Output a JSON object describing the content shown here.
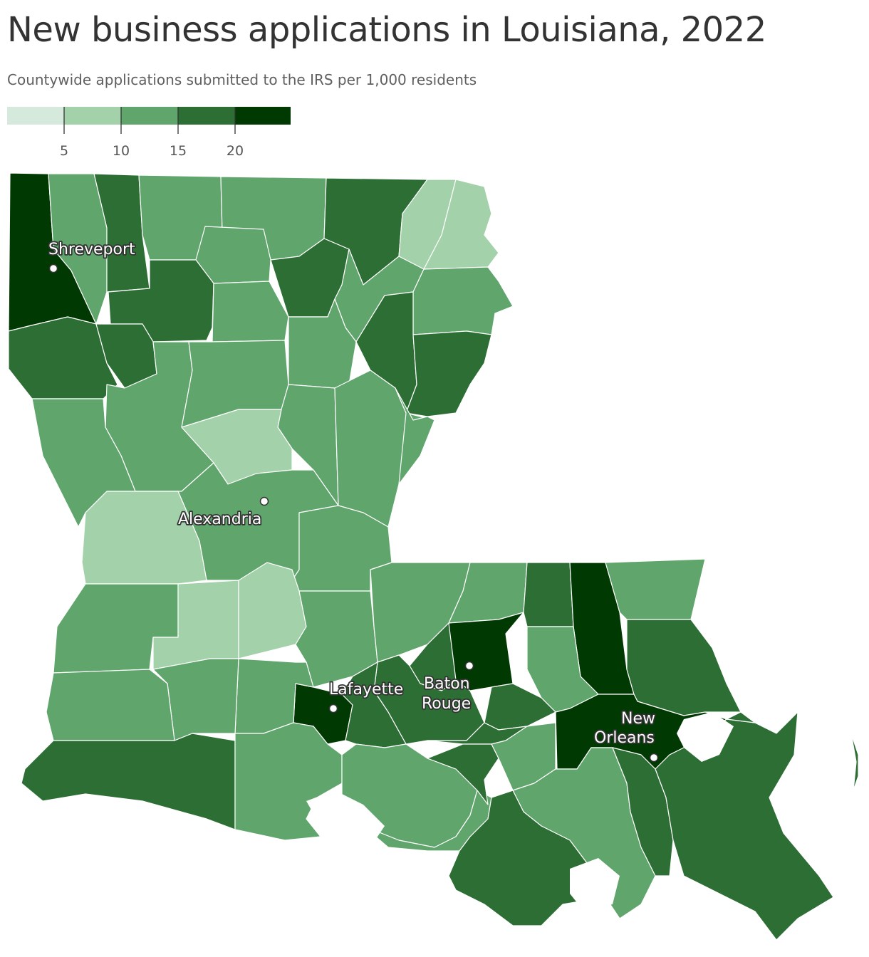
{
  "title": "New business applications in Louisiana, 2022",
  "subtitle": "Countywide applications submitted to the IRS per 1,000 residents",
  "legend": {
    "ticks": [
      "5",
      "10",
      "15",
      "20"
    ],
    "bins": [
      {
        "range": "under 5",
        "color": "#d6e9dd"
      },
      {
        "range": "5-10",
        "color": "#a3d1aa"
      },
      {
        "range": "10-15",
        "color": "#5fa56c"
      },
      {
        "range": "15-20",
        "color": "#2d6e35"
      },
      {
        "range": "20+",
        "color": "#003a02"
      }
    ]
  },
  "cities": [
    {
      "name": "shreveport",
      "lines": [
        "Shreveport"
      ]
    },
    {
      "name": "alexandria",
      "lines": [
        "Alexandria"
      ]
    },
    {
      "name": "lafayette",
      "lines": [
        "Lafayette"
      ]
    },
    {
      "name": "baton-rouge",
      "lines": [
        "Baton",
        "Rouge"
      ]
    },
    {
      "name": "new-orleans",
      "lines": [
        "New",
        "Orleans"
      ]
    }
  ]
}
